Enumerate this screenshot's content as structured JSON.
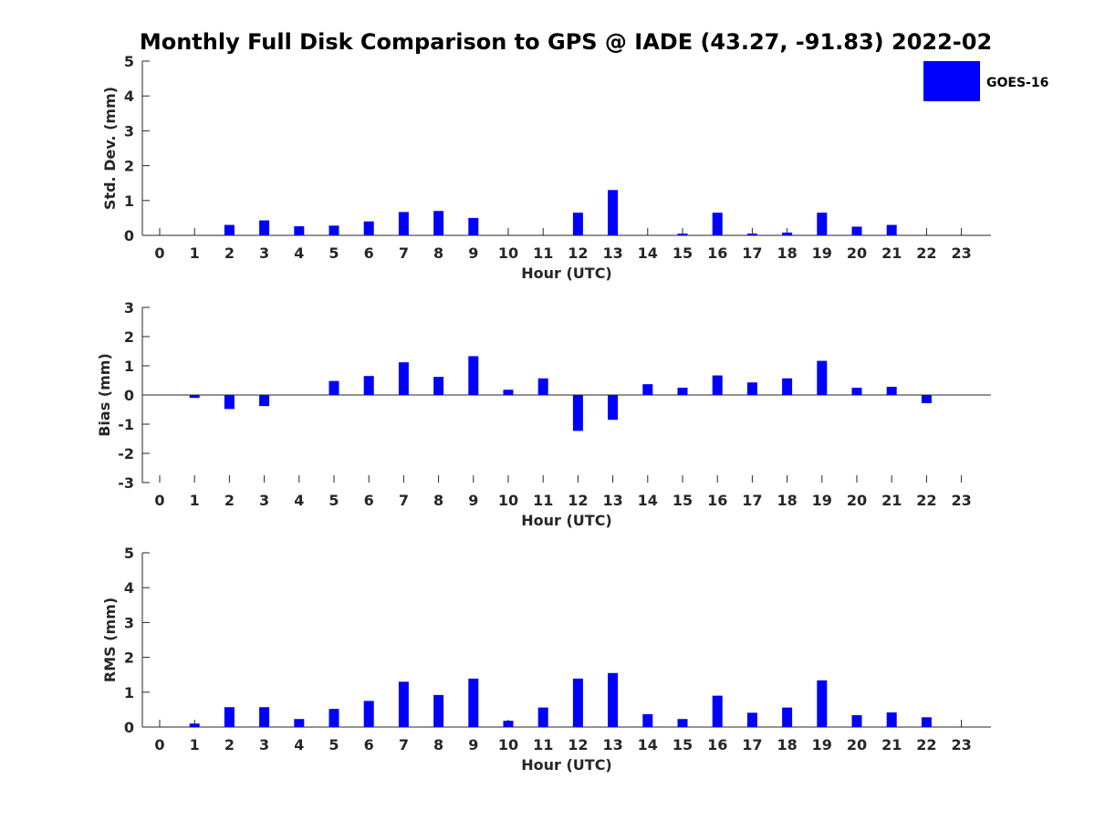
{
  "chart_data": {
    "title": "Monthly Full Disk Comparison to GPS @ IADE (43.27, -91.83) 2022-02",
    "bar_color": "#0000ff",
    "legend": {
      "label": "GOES-16",
      "placement": "top-right"
    },
    "panels": [
      {
        "type": "bar",
        "name": "std-dev",
        "xlabel": "Hour (UTC)",
        "ylabel": "Std. Dev. (mm)",
        "ylim": [
          0,
          5
        ],
        "yticks": [
          0,
          1,
          2,
          3,
          4,
          5
        ],
        "categories": [
          "0",
          "1",
          "2",
          "3",
          "4",
          "5",
          "6",
          "7",
          "8",
          "9",
          "10",
          "11",
          "12",
          "13",
          "14",
          "15",
          "16",
          "17",
          "18",
          "19",
          "20",
          "21",
          "22",
          "23"
        ],
        "series": [
          {
            "name": "GOES-16",
            "values": [
              null,
              null,
              0.3,
              0.43,
              0.26,
              0.28,
              0.4,
              0.67,
              0.7,
              0.5,
              null,
              null,
              0.65,
              1.3,
              null,
              0.05,
              0.65,
              0.05,
              0.08,
              0.65,
              0.25,
              0.3,
              null,
              null
            ]
          }
        ]
      },
      {
        "type": "bar",
        "name": "bias",
        "xlabel": "Hour (UTC)",
        "ylabel": "Bias (mm)",
        "ylim": [
          -3,
          3
        ],
        "yticks": [
          -3,
          -2,
          -1,
          0,
          1,
          2,
          3
        ],
        "categories": [
          "0",
          "1",
          "2",
          "3",
          "4",
          "5",
          "6",
          "7",
          "8",
          "9",
          "10",
          "11",
          "12",
          "13",
          "14",
          "15",
          "16",
          "17",
          "18",
          "19",
          "20",
          "21",
          "22",
          "23"
        ],
        "series": [
          {
            "name": "GOES-16",
            "values": [
              null,
              -0.1,
              -0.48,
              -0.38,
              null,
              0.48,
              0.65,
              1.12,
              0.62,
              1.33,
              0.18,
              0.57,
              -1.23,
              -0.85,
              0.37,
              0.25,
              0.67,
              0.43,
              0.57,
              1.17,
              0.25,
              0.28,
              -0.28,
              null
            ]
          }
        ]
      },
      {
        "type": "bar",
        "name": "rms",
        "xlabel": "Hour (UTC)",
        "ylabel": "RMS (mm)",
        "ylim": [
          0,
          5
        ],
        "yticks": [
          0,
          1,
          2,
          3,
          4,
          5
        ],
        "categories": [
          "0",
          "1",
          "2",
          "3",
          "4",
          "5",
          "6",
          "7",
          "8",
          "9",
          "10",
          "11",
          "12",
          "13",
          "14",
          "15",
          "16",
          "17",
          "18",
          "19",
          "20",
          "21",
          "22",
          "23"
        ],
        "series": [
          {
            "name": "GOES-16",
            "values": [
              null,
              0.1,
              0.57,
              0.57,
              0.23,
              0.52,
              0.75,
              1.3,
              0.92,
              1.39,
              0.18,
              0.56,
              1.39,
              1.55,
              0.37,
              0.23,
              0.9,
              0.41,
              0.56,
              1.34,
              0.34,
              0.42,
              0.28,
              null
            ]
          }
        ]
      }
    ]
  }
}
